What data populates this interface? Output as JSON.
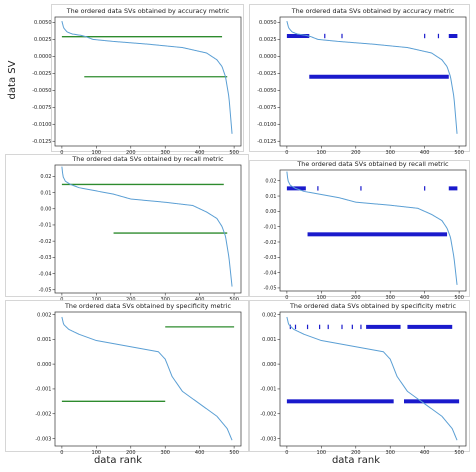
{
  "figure": {
    "ylabel": "data SV",
    "xlabel": "data rank"
  },
  "chart_data": [
    {
      "type": "line",
      "title": "The ordered data SVs obtained by accuracy metric",
      "xlabel": "",
      "ylabel": "data SV",
      "xlim": [
        -20,
        520
      ],
      "ylim": [
        -0.0132,
        0.0058
      ],
      "xticks": [
        0,
        100,
        200,
        300,
        400,
        500
      ],
      "yticks": [
        0.005,
        0.0025,
        0.0,
        -0.0025,
        -0.005,
        -0.0075,
        -0.01,
        -0.0125
      ],
      "ytick_labels": [
        "0.0050",
        "0.0025",
        "0.0000",
        "-0.0025",
        "-0.0050",
        "-0.0075",
        "-0.0100",
        "-0.0125"
      ],
      "sv_curve": {
        "x": [
          0,
          5,
          15,
          30,
          55,
          70,
          90,
          150,
          250,
          350,
          420,
          450,
          465,
          475,
          485,
          490,
          495
        ],
        "y": [
          0.0052,
          0.0042,
          0.0036,
          0.0033,
          0.0031,
          0.0029,
          0.0025,
          0.0022,
          0.0018,
          0.0013,
          0.0005,
          -0.0005,
          -0.0015,
          -0.003,
          -0.006,
          -0.009,
          -0.012
        ]
      },
      "markers": {
        "style": "line",
        "color": "#2e8b2e",
        "segments": [
          {
            "y": 0.0029,
            "x0": 0,
            "x1": 465
          },
          {
            "y": -0.003,
            "x0": 65,
            "x1": 480
          }
        ]
      }
    },
    {
      "type": "line",
      "title": "The ordered data SVs obtained by accuracy metric",
      "xlabel": "",
      "ylabel": "",
      "xlim": [
        -20,
        520
      ],
      "ylim": [
        -0.0132,
        0.0058
      ],
      "xticks": [
        0,
        100,
        200,
        300,
        400,
        500
      ],
      "yticks": [
        0.005,
        0.0025,
        0.0,
        -0.0025,
        -0.005,
        -0.0075,
        -0.01,
        -0.0125
      ],
      "ytick_labels": [
        "0.0050",
        "0.0025",
        "0.0000",
        "-0.0025",
        "-0.0050",
        "-0.0075",
        "-0.0100",
        "-0.0125"
      ],
      "sv_curve": {
        "x": [
          0,
          5,
          15,
          30,
          55,
          70,
          90,
          150,
          250,
          350,
          420,
          450,
          465,
          475,
          485,
          490,
          495
        ],
        "y": [
          0.0052,
          0.0042,
          0.0036,
          0.0033,
          0.0031,
          0.0029,
          0.0025,
          0.0022,
          0.0018,
          0.0013,
          0.0005,
          -0.0005,
          -0.0015,
          -0.003,
          -0.006,
          -0.009,
          -0.012
        ]
      },
      "markers": {
        "style": "ticks",
        "color": "#1a1acc",
        "segments": [
          {
            "y": 0.003,
            "x0": 0,
            "x1": 65
          },
          {
            "y": 0.003,
            "x0": 470,
            "x1": 495
          },
          {
            "y": -0.003,
            "x0": 65,
            "x1": 470
          }
        ],
        "points": [
          {
            "x": 110,
            "y": 0.003
          },
          {
            "x": 160,
            "y": 0.003
          },
          {
            "x": 400,
            "y": 0.003
          },
          {
            "x": 440,
            "y": 0.003
          }
        ]
      }
    },
    {
      "type": "line",
      "title": "The ordered data SVs obtained by recall metric",
      "xlabel": "",
      "ylabel": "data SV",
      "xlim": [
        -20,
        520
      ],
      "ylim": [
        -0.052,
        0.027
      ],
      "xticks": [
        0,
        100,
        200,
        300,
        400,
        500
      ],
      "yticks": [
        0.02,
        0.01,
        0.0,
        -0.01,
        -0.02,
        -0.03,
        -0.04,
        -0.05
      ],
      "ytick_labels": [
        "0.02",
        "0.01",
        "0.00",
        "-0.01",
        "-0.02",
        "-0.03",
        "-0.04",
        "-0.05"
      ],
      "sv_curve": {
        "x": [
          0,
          3,
          10,
          25,
          50,
          100,
          150,
          200,
          300,
          380,
          420,
          450,
          465,
          475,
          485,
          490,
          495
        ],
        "y": [
          0.026,
          0.02,
          0.017,
          0.015,
          0.013,
          0.011,
          0.009,
          0.006,
          0.004,
          0.002,
          -0.002,
          -0.006,
          -0.011,
          -0.017,
          -0.03,
          -0.04,
          -0.05
        ]
      },
      "markers": {
        "style": "line",
        "color": "#2e8b2e",
        "segments": [
          {
            "y": 0.015,
            "x0": 0,
            "x1": 470
          },
          {
            "y": -0.015,
            "x0": 150,
            "x1": 480
          }
        ]
      }
    },
    {
      "type": "line",
      "title": "The ordered data SVs obtained by recall metric",
      "xlabel": "",
      "ylabel": "",
      "xlim": [
        -20,
        520
      ],
      "ylim": [
        -0.052,
        0.027
      ],
      "xticks": [
        0,
        100,
        200,
        300,
        400,
        500
      ],
      "yticks": [
        0.02,
        0.01,
        0.0,
        -0.01,
        -0.02,
        -0.03,
        -0.04,
        -0.05
      ],
      "ytick_labels": [
        "0.02",
        "0.01",
        "0.00",
        "-0.01",
        "-0.02",
        "-0.03",
        "-0.04",
        "-0.05"
      ],
      "sv_curve": {
        "x": [
          0,
          3,
          10,
          25,
          50,
          100,
          150,
          200,
          300,
          380,
          420,
          450,
          465,
          475,
          485,
          490,
          495
        ],
        "y": [
          0.026,
          0.02,
          0.017,
          0.015,
          0.013,
          0.011,
          0.009,
          0.006,
          0.004,
          0.002,
          -0.002,
          -0.006,
          -0.011,
          -0.017,
          -0.03,
          -0.04,
          -0.05
        ]
      },
      "markers": {
        "style": "ticks",
        "color": "#1a1acc",
        "segments": [
          {
            "y": 0.015,
            "x0": 0,
            "x1": 55
          },
          {
            "y": 0.015,
            "x0": 470,
            "x1": 495
          },
          {
            "y": -0.015,
            "x0": 60,
            "x1": 465
          }
        ],
        "points": [
          {
            "x": 90,
            "y": 0.015
          },
          {
            "x": 215,
            "y": 0.015
          },
          {
            "x": 400,
            "y": 0.015
          }
        ]
      }
    },
    {
      "type": "line",
      "title": "The ordered data SVs obtained by specificity metric",
      "xlabel": "data rank",
      "ylabel": "data SV",
      "xlim": [
        -20,
        520
      ],
      "ylim": [
        -0.0033,
        0.0021
      ],
      "xticks": [
        0,
        100,
        200,
        300,
        400,
        500
      ],
      "yticks": [
        0.002,
        0.001,
        0.0,
        -0.001,
        -0.002,
        -0.003
      ],
      "ytick_labels": [
        "0.002",
        "0.001",
        "0.000",
        "-0.001",
        "-0.002",
        "-0.003"
      ],
      "sv_curve": {
        "x": [
          0,
          5,
          20,
          50,
          100,
          200,
          280,
          300,
          320,
          350,
          400,
          450,
          480,
          495
        ],
        "y": [
          0.0019,
          0.0016,
          0.0014,
          0.0012,
          0.00095,
          0.0007,
          0.0005,
          0.0002,
          -0.0005,
          -0.0011,
          -0.0016,
          -0.0021,
          -0.0026,
          -0.0031
        ]
      },
      "markers": {
        "style": "line",
        "color": "#2e8b2e",
        "segments": [
          {
            "y": 0.0015,
            "x0": 300,
            "x1": 500
          },
          {
            "y": -0.0015,
            "x0": 0,
            "x1": 300
          }
        ]
      }
    },
    {
      "type": "line",
      "title": "The ordered data SVs obtained by specificity metric",
      "xlabel": "data rank",
      "ylabel": "",
      "xlim": [
        -20,
        520
      ],
      "ylim": [
        -0.0033,
        0.0021
      ],
      "xticks": [
        0,
        100,
        200,
        300,
        400,
        500
      ],
      "yticks": [
        0.002,
        0.001,
        0.0,
        -0.001,
        -0.002,
        -0.003
      ],
      "ytick_labels": [
        "0.002",
        "0.001",
        "0.000",
        "-0.001",
        "-0.002",
        "-0.003"
      ],
      "sv_curve": {
        "x": [
          0,
          5,
          20,
          50,
          100,
          200,
          280,
          300,
          320,
          350,
          400,
          450,
          480,
          495
        ],
        "y": [
          0.0019,
          0.0016,
          0.0014,
          0.0012,
          0.00095,
          0.0007,
          0.0005,
          0.0002,
          -0.0005,
          -0.0011,
          -0.0016,
          -0.0021,
          -0.0026,
          -0.0031
        ]
      },
      "markers": {
        "style": "ticks",
        "color": "#1a1acc",
        "segments": [
          {
            "y": 0.0015,
            "x0": 230,
            "x1": 330
          },
          {
            "y": 0.0015,
            "x0": 350,
            "x1": 480
          },
          {
            "y": -0.0015,
            "x0": 0,
            "x1": 310
          },
          {
            "y": -0.0015,
            "x0": 340,
            "x1": 500
          }
        ],
        "points": [
          {
            "x": 10,
            "y": 0.0015
          },
          {
            "x": 25,
            "y": 0.0015
          },
          {
            "x": 60,
            "y": 0.0015
          },
          {
            "x": 95,
            "y": 0.0015
          },
          {
            "x": 120,
            "y": 0.0015
          },
          {
            "x": 160,
            "y": 0.0015
          },
          {
            "x": 190,
            "y": 0.0015
          },
          {
            "x": 215,
            "y": 0.0015
          }
        ]
      }
    }
  ],
  "colors": {
    "sv_curve": "#5b9fd4",
    "axes": "#333333",
    "panel_border": "#cccccc"
  }
}
